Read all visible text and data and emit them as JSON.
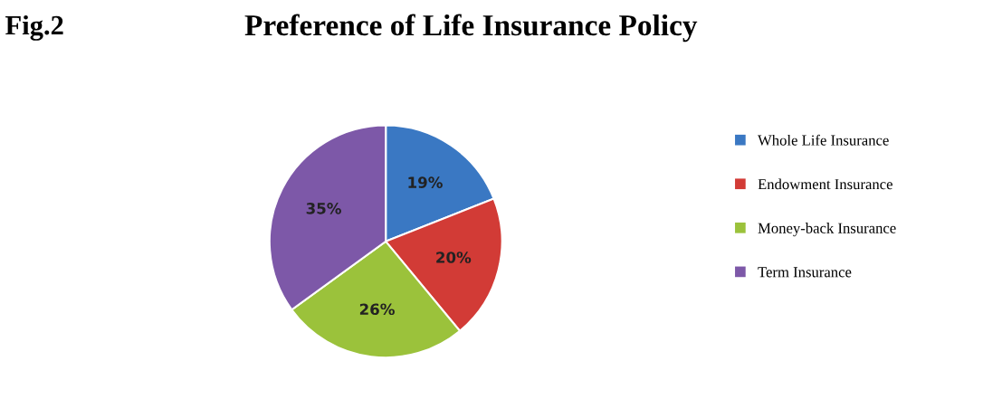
{
  "chart_data": {
    "type": "pie",
    "title": "Preference of Life Insurance Policy",
    "annotations": [
      "Fig.2"
    ],
    "categories": [
      "Whole Life Insurance",
      "Endowment Insurance",
      "Money-back Insurance",
      "Term Insurance"
    ],
    "values": [
      19,
      20,
      26,
      35
    ],
    "value_labels": [
      "19%",
      "20%",
      "26%",
      "35%"
    ],
    "colors": [
      "#3a78c3",
      "#d23b36",
      "#9bc23b",
      "#7d58a8"
    ],
    "legend": "right"
  }
}
